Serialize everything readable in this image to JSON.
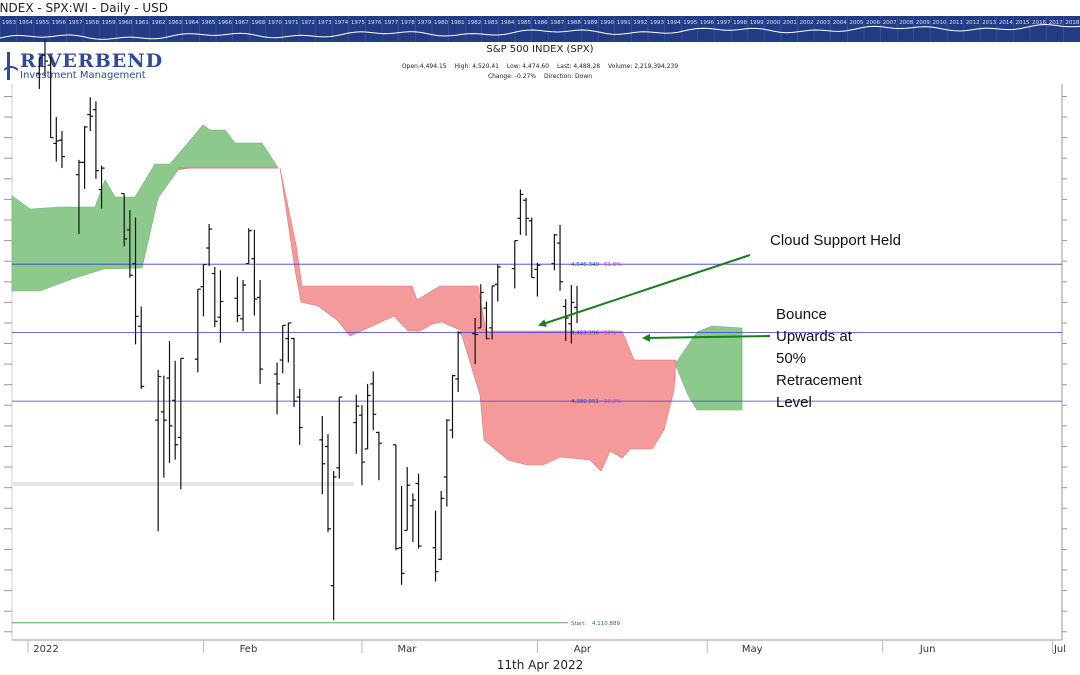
{
  "window": {
    "title": "INDEX - SPX:WI - Daily - USD"
  },
  "year_strip": [
    "1953",
    "1954",
    "1955",
    "1956",
    "1957",
    "1958",
    "1959",
    "1960",
    "1961",
    "1962",
    "1963",
    "1964",
    "1965",
    "1966",
    "1967",
    "1968",
    "1970",
    "1971",
    "1972",
    "1973",
    "1974",
    "1975",
    "1976",
    "1977",
    "1978",
    "1979",
    "1980",
    "1981",
    "1982",
    "1983",
    "1984",
    "1985",
    "1986",
    "1987",
    "1988",
    "1989",
    "1990",
    "1991",
    "1992",
    "1993",
    "1994",
    "1995",
    "1996",
    "1997",
    "1998",
    "1999",
    "2000",
    "2001",
    "2002",
    "2003",
    "2004",
    "2005",
    "2006",
    "2007",
    "2008",
    "2009",
    "2010",
    "2011",
    "2012",
    "2013",
    "2014",
    "2015",
    "2016",
    "2017",
    "2018"
  ],
  "logo": {
    "name": "RIVERBEND",
    "tagline": "Investment Management"
  },
  "header": {
    "title": "S&P 500 INDEX (SPX)",
    "open": "Open:4,494.15",
    "high": "High: 4,520.41",
    "low": "Low: 4,474.60",
    "last": "Last: 4,488.28",
    "volume": "Volume: 2,219,394,239",
    "change": "Change: -0.27%",
    "direction": "Direction: Down"
  },
  "annotations": {
    "cloud": "Cloud Support Held",
    "bounce": [
      "Bounce",
      "Upwards at",
      "50%",
      "Retracement",
      "Level"
    ]
  },
  "footer": {
    "date": "11th Apr 2022"
  },
  "colors": {
    "bull_cloud": "#8dc98d",
    "bear_cloud": "#f59a9a",
    "fib_line": "#3a3ad6",
    "arrow": "#1a7f1a",
    "start_line": "#3aa13a"
  },
  "chart_data": {
    "type": "ohlc",
    "title": "S&P 500 INDEX (SPX)",
    "x_labels": [
      "2022",
      "Feb",
      "Mar",
      "Apr",
      "May",
      "Jun",
      "Jul"
    ],
    "y_range": [
      4090,
      4770
    ],
    "fib_levels": [
      {
        "value": 4546.34,
        "label": "4,546.340",
        "pct": "61.8%"
      },
      {
        "value": 4463.196,
        "label": "4,463.196",
        "pct": "50%"
      },
      {
        "value": 4380.051,
        "label": "4,380.051",
        "pct": "38.2%"
      }
    ],
    "start_level": {
      "value": 4110.889,
      "label": "Start:",
      "value_label": "4,110.889"
    },
    "grid": false,
    "bars": [
      {
        "date": "2022-01-03",
        "open": 4778,
        "high": 4797,
        "low": 4759,
        "close": 4797
      },
      {
        "date": "2022-01-04",
        "open": 4800,
        "high": 4819,
        "low": 4775,
        "close": 4793
      },
      {
        "date": "2022-01-05",
        "open": 4788,
        "high": 4798,
        "low": 4700,
        "close": 4700
      },
      {
        "date": "2022-01-06",
        "open": 4693,
        "high": 4725,
        "low": 4671,
        "close": 4696
      },
      {
        "date": "2022-01-07",
        "open": 4697,
        "high": 4708,
        "low": 4663,
        "close": 4677
      },
      {
        "date": "2022-01-10",
        "open": 4655,
        "high": 4673,
        "low": 4583,
        "close": 4670
      },
      {
        "date": "2022-01-11",
        "open": 4670,
        "high": 4714,
        "low": 4638,
        "close": 4713
      },
      {
        "date": "2022-01-12",
        "open": 4728,
        "high": 4749,
        "low": 4708,
        "close": 4726
      },
      {
        "date": "2022-01-13",
        "open": 4734,
        "high": 4744,
        "low": 4650,
        "close": 4660
      },
      {
        "date": "2022-01-14",
        "open": 4637,
        "high": 4666,
        "low": 4614,
        "close": 4663
      },
      {
        "date": "2022-01-18",
        "open": 4632,
        "high": 4632,
        "low": 4568,
        "close": 4577
      },
      {
        "date": "2022-01-19",
        "open": 4588,
        "high": 4612,
        "low": 4530,
        "close": 4533
      },
      {
        "date": "2022-01-20",
        "open": 4547,
        "high": 4603,
        "low": 4449,
        "close": 4483
      },
      {
        "date": "2022-01-21",
        "open": 4471,
        "high": 4495,
        "low": 4395,
        "close": 4398
      },
      {
        "date": "2022-01-24",
        "open": 4357,
        "high": 4418,
        "low": 4222,
        "close": 4410
      },
      {
        "date": "2022-01-25",
        "open": 4367,
        "high": 4411,
        "low": 4287,
        "close": 4357
      },
      {
        "date": "2022-01-26",
        "open": 4408,
        "high": 4453,
        "low": 4305,
        "close": 4350
      },
      {
        "date": "2022-01-27",
        "open": 4381,
        "high": 4429,
        "low": 4309,
        "close": 4327
      },
      {
        "date": "2022-01-28",
        "open": 4336,
        "high": 4432,
        "low": 4273,
        "close": 4432
      },
      {
        "date": "2022-01-31",
        "open": 4431,
        "high": 4516,
        "low": 4415,
        "close": 4516
      },
      {
        "date": "2022-02-01",
        "open": 4519,
        "high": 4546,
        "low": 4483,
        "close": 4546
      },
      {
        "date": "2022-02-02",
        "open": 4566,
        "high": 4595,
        "low": 4544,
        "close": 4589
      },
      {
        "date": "2022-02-03",
        "open": 4535,
        "high": 4543,
        "low": 4470,
        "close": 4477
      },
      {
        "date": "2022-02-04",
        "open": 4482,
        "high": 4539,
        "low": 4451,
        "close": 4501
      },
      {
        "date": "2022-02-07",
        "open": 4505,
        "high": 4531,
        "low": 4476,
        "close": 4484
      },
      {
        "date": "2022-02-08",
        "open": 4480,
        "high": 4527,
        "low": 4465,
        "close": 4521
      },
      {
        "date": "2022-02-09",
        "open": 4547,
        "high": 4590,
        "low": 4547,
        "close": 4587
      },
      {
        "date": "2022-02-10",
        "open": 4553,
        "high": 4588,
        "low": 4484,
        "close": 4504
      },
      {
        "date": "2022-02-11",
        "open": 4506,
        "high": 4527,
        "low": 4401,
        "close": 4419
      },
      {
        "date": "2022-02-14",
        "open": 4413,
        "high": 4427,
        "low": 4364,
        "close": 4401
      },
      {
        "date": "2022-02-15",
        "open": 4430,
        "high": 4472,
        "low": 4414,
        "close": 4472
      },
      {
        "date": "2022-02-16",
        "open": 4456,
        "high": 4475,
        "low": 4427,
        "close": 4475
      },
      {
        "date": "2022-02-17",
        "open": 4456,
        "high": 4457,
        "low": 4373,
        "close": 4380
      },
      {
        "date": "2022-02-18",
        "open": 4385,
        "high": 4395,
        "low": 4327,
        "close": 4348
      },
      {
        "date": "2022-02-22",
        "open": 4333,
        "high": 4362,
        "low": 4267,
        "close": 4304
      },
      {
        "date": "2022-02-23",
        "open": 4325,
        "high": 4340,
        "low": 4221,
        "close": 4225
      },
      {
        "date": "2022-02-24",
        "open": 4156,
        "high": 4295,
        "low": 4114,
        "close": 4288
      },
      {
        "date": "2022-02-25",
        "open": 4299,
        "high": 4385,
        "low": 4286,
        "close": 4385
      },
      {
        "date": "2022-02-28",
        "open": 4354,
        "high": 4388,
        "low": 4316,
        "close": 4374
      },
      {
        "date": "2022-03-01",
        "open": 4363,
        "high": 4375,
        "low": 4278,
        "close": 4306
      },
      {
        "date": "2022-03-02",
        "open": 4322,
        "high": 4401,
        "low": 4322,
        "close": 4387
      },
      {
        "date": "2022-03-03",
        "open": 4401,
        "high": 4416,
        "low": 4345,
        "close": 4364
      },
      {
        "date": "2022-03-04",
        "open": 4342,
        "high": 4343,
        "low": 4284,
        "close": 4329
      },
      {
        "date": "2022-03-07",
        "open": 4327,
        "high": 4327,
        "low": 4199,
        "close": 4201
      },
      {
        "date": "2022-03-08",
        "open": 4202,
        "high": 4277,
        "low": 4157,
        "close": 4171
      },
      {
        "date": "2022-03-09",
        "open": 4223,
        "high": 4300,
        "low": 4223,
        "close": 4278
      },
      {
        "date": "2022-03-10",
        "open": 4253,
        "high": 4268,
        "low": 4209,
        "close": 4260
      },
      {
        "date": "2022-03-11",
        "open": 4280,
        "high": 4292,
        "low": 4201,
        "close": 4204
      },
      {
        "date": "2022-03-14",
        "open": 4202,
        "high": 4247,
        "low": 4161,
        "close": 4173
      },
      {
        "date": "2022-03-15",
        "open": 4188,
        "high": 4271,
        "low": 4187,
        "close": 4262
      },
      {
        "date": "2022-03-16",
        "open": 4288,
        "high": 4358,
        "low": 4252,
        "close": 4357
      },
      {
        "date": "2022-03-17",
        "open": 4345,
        "high": 4412,
        "low": 4335,
        "close": 4411
      },
      {
        "date": "2022-03-18",
        "open": 4407,
        "high": 4465,
        "low": 4391,
        "close": 4463
      },
      {
        "date": "2022-03-21",
        "open": 4462,
        "high": 4481,
        "low": 4425,
        "close": 4461
      },
      {
        "date": "2022-03-22",
        "open": 4469,
        "high": 4522,
        "low": 4469,
        "close": 4512
      },
      {
        "date": "2022-03-23",
        "open": 4493,
        "high": 4501,
        "low": 4455,
        "close": 4456
      },
      {
        "date": "2022-03-24",
        "open": 4469,
        "high": 4520,
        "low": 4455,
        "close": 4520
      },
      {
        "date": "2022-03-25",
        "open": 4522,
        "high": 4546,
        "low": 4501,
        "close": 4543
      },
      {
        "date": "2022-03-28",
        "open": 4541,
        "high": 4575,
        "low": 4517,
        "close": 4575
      },
      {
        "date": "2022-03-29",
        "open": 4602,
        "high": 4637,
        "low": 4582,
        "close": 4631
      },
      {
        "date": "2022-03-30",
        "open": 4624,
        "high": 4627,
        "low": 4581,
        "close": 4602
      },
      {
        "date": "2022-03-31",
        "open": 4599,
        "high": 4603,
        "low": 4530,
        "close": 4530
      },
      {
        "date": "2022-04-01",
        "open": 4540,
        "high": 4548,
        "low": 4507,
        "close": 4545
      },
      {
        "date": "2022-04-04",
        "open": 4547,
        "high": 4583,
        "low": 4539,
        "close": 4582
      },
      {
        "date": "2022-04-05",
        "open": 4572,
        "high": 4594,
        "low": 4514,
        "close": 4525
      },
      {
        "date": "2022-04-06",
        "open": 4495,
        "high": 4504,
        "low": 4453,
        "close": 4481
      },
      {
        "date": "2022-04-07",
        "open": 4474,
        "high": 4521,
        "low": 4450,
        "close": 4500
      },
      {
        "date": "2022-04-08",
        "open": 4494,
        "high": 4520,
        "low": 4475,
        "close": 4488
      }
    ]
  }
}
